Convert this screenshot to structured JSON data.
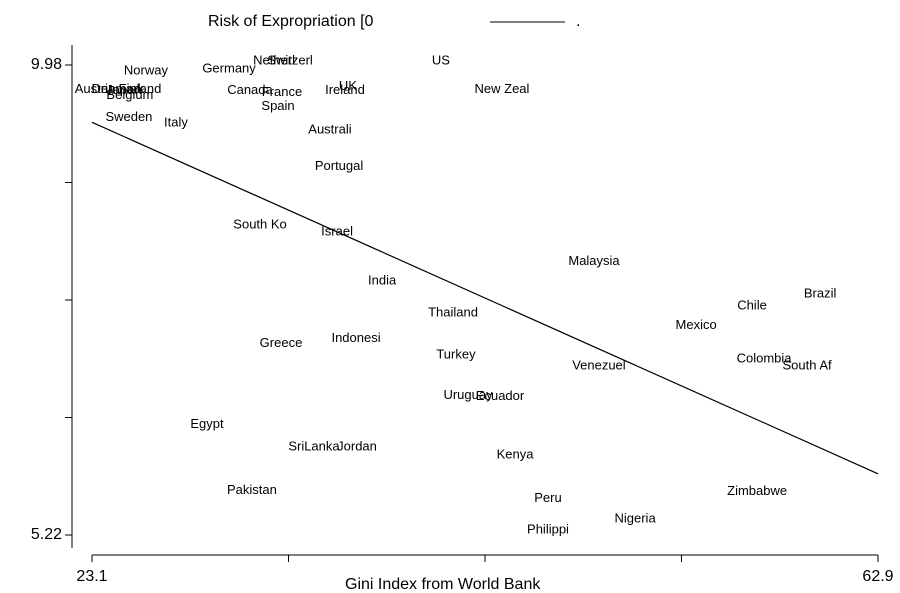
{
  "chart_data": {
    "type": "scatter",
    "title": "Risk of Expropriation [0",
    "xlabel": "Gini Index from World Bank",
    "points": {
      "labels": [
        "Norway",
        "Germany",
        "Netherl",
        "Switzerl",
        "US",
        "Austria",
        "Denmark",
        "Japan",
        "Finland",
        "Belgium",
        "Canada",
        "France",
        "UK",
        "Ireland",
        "New Zeal",
        "Spain",
        "Sweden",
        "Italy",
        "Australi",
        "Portugal",
        "South Ko",
        "Israel",
        "Malaysia",
        "India",
        "Brazil",
        "Chile",
        "Thailand",
        "Mexico",
        "Indonesi",
        "Greece",
        "Turkey",
        "Colombia",
        "South Af",
        "Venezuel",
        "Uruguay",
        "Ecuador",
        "Egypt",
        "SriLanka",
        "Jordan",
        "Kenya",
        "Pakistan",
        "Zimbabwe",
        "Peru",
        "Nigeria",
        "Philippi"
      ],
      "x": [
        25.83,
        30.04,
        32.32,
        33.13,
        40.77,
        23.25,
        24.41,
        24.72,
        25.53,
        25.02,
        31.1,
        32.72,
        36.06,
        35.91,
        43.86,
        32.52,
        24.97,
        27.35,
        35.15,
        35.61,
        31.61,
        35.51,
        48.52,
        37.79,
        59.97,
        56.52,
        41.38,
        53.69,
        36.47,
        32.67,
        41.53,
        57.13,
        59.31,
        48.77,
        42.14,
        43.76,
        28.92,
        34.34,
        36.52,
        44.52,
        31.2,
        56.78,
        46.19,
        50.6,
        46.19
      ],
      "y": [
        9.92,
        9.94,
        10.02,
        10.02,
        10.02,
        9.73,
        9.73,
        9.72,
        9.73,
        9.67,
        9.72,
        9.7,
        9.76,
        9.72,
        9.73,
        9.56,
        9.45,
        9.39,
        9.32,
        8.95,
        8.36,
        8.29,
        7.99,
        7.79,
        7.66,
        7.54,
        7.47,
        7.34,
        7.21,
        7.16,
        7.04,
        7.0,
        6.93,
        6.93,
        6.63,
        6.62,
        6.34,
        6.11,
        6.11,
        6.03,
        5.67,
        5.66,
        5.59,
        5.38,
        5.27
      ]
    },
    "fit": {
      "name": ".",
      "color": "#000000",
      "x": [
        23.1,
        62.9
      ],
      "y": [
        9.4,
        5.84
      ]
    },
    "xlim": [
      23.1,
      62.9
    ],
    "ylim": [
      5.22,
      9.98
    ],
    "xticks": [
      23.1,
      62.9
    ],
    "xminorticks": [
      33.05,
      43,
      52.95
    ],
    "yticks": [
      5.22,
      9.98
    ],
    "yminorticks": [
      6.41,
      7.6,
      8.79
    ]
  }
}
